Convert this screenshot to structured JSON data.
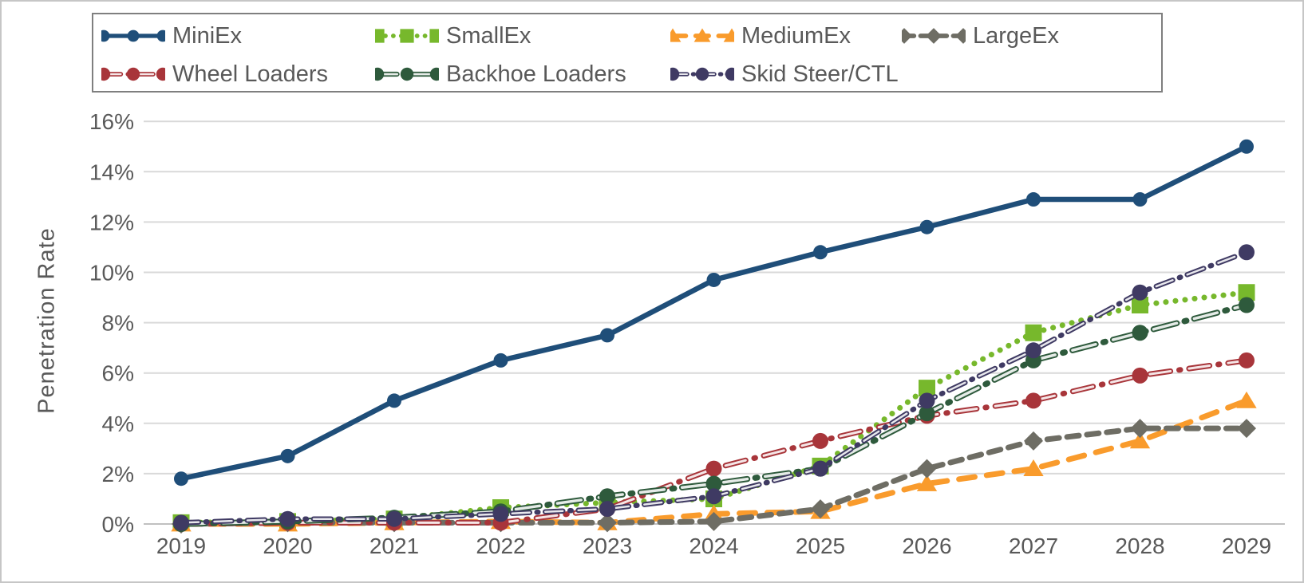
{
  "chart_data": {
    "type": "line",
    "title": "",
    "xlabel": "",
    "ylabel": "Penetration Rate",
    "x": [
      2019,
      2020,
      2021,
      2022,
      2023,
      2024,
      2025,
      2026,
      2027,
      2028,
      2029
    ],
    "ylim": [
      0,
      16
    ],
    "y_tick_step": 2,
    "y_tick_suffix": "%",
    "grid": true,
    "legend_position": "top",
    "colors": {
      "grid": "#d9d9d9",
      "axis_line": "#c0c0c0",
      "tick_text": "#595959",
      "legend_border": "#7f7f7f"
    },
    "series": [
      {
        "name": "MiniEx",
        "color": "#1f4e79",
        "marker": "circle",
        "line": "solid",
        "values": [
          1.8,
          2.7,
          4.9,
          6.5,
          7.5,
          9.7,
          10.8,
          11.8,
          12.9,
          12.9,
          15.0
        ]
      },
      {
        "name": "SmallEx",
        "color": "#77b82c",
        "marker": "square",
        "line": "dotted",
        "values": [
          0.05,
          0.1,
          0.2,
          0.65,
          0.85,
          1.0,
          2.3,
          5.4,
          7.6,
          8.7,
          9.2
        ]
      },
      {
        "name": "MediumEx",
        "color": "#f99b2c",
        "marker": "triangle",
        "line": "dashed",
        "values": [
          0.0,
          0.0,
          0.05,
          0.1,
          0.05,
          0.4,
          0.5,
          1.6,
          2.2,
          3.3,
          4.9
        ]
      },
      {
        "name": "LargeEx",
        "color": "#6e6d64",
        "marker": "diamond",
        "line": "dashed-small",
        "values": [
          0.0,
          0.05,
          0.05,
          0.05,
          0.05,
          0.1,
          0.6,
          2.2,
          3.3,
          3.8,
          3.8
        ]
      },
      {
        "name": "Wheel Loaders",
        "color": "#a8353a",
        "marker": "circle",
        "line": "dash-dot-hollow",
        "values": [
          0.0,
          0.05,
          0.05,
          0.05,
          0.6,
          2.2,
          3.3,
          4.3,
          4.9,
          5.9,
          6.5
        ]
      },
      {
        "name": "Backhoe Loaders",
        "color": "#2e5a3c",
        "marker": "circle",
        "line": "long-dash-hollow",
        "values": [
          0.0,
          0.1,
          0.25,
          0.5,
          1.1,
          1.6,
          2.2,
          4.4,
          6.5,
          7.6,
          8.7
        ]
      },
      {
        "name": "Skid Steer/CTL",
        "color": "#3f3a63",
        "marker": "circle",
        "line": "dash-dot-hollow-small",
        "values": [
          0.05,
          0.2,
          0.2,
          0.4,
          0.6,
          1.1,
          2.2,
          4.9,
          6.9,
          9.2,
          10.8
        ]
      }
    ]
  }
}
